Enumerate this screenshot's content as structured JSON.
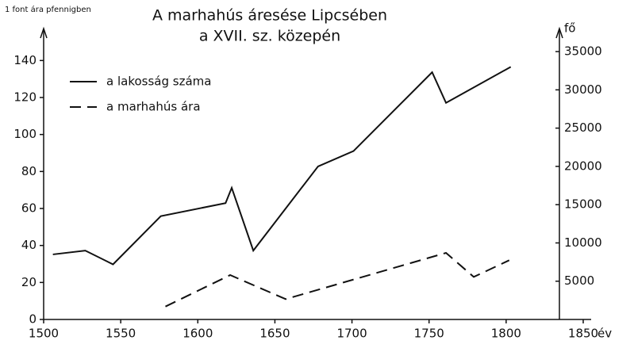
{
  "chart_data": {
    "type": "line",
    "title": "A marhahús áresése Lipcsében",
    "subtitle": "a XVII. sz. közepén",
    "y_label": "1 font ára pfennigben",
    "y2_label": "fő",
    "x_label": "év",
    "xlim": [
      1500,
      1850
    ],
    "xticks": [
      1500,
      1550,
      1600,
      1650,
      1700,
      1750,
      1800,
      1850
    ],
    "ylim": [
      0,
      150
    ],
    "yticks": [
      0,
      20,
      40,
      60,
      80,
      100,
      120,
      140
    ],
    "y2lim": [
      0,
      36250
    ],
    "y2ticks": [
      5000,
      10000,
      15000,
      20000,
      25000,
      30000,
      35000
    ],
    "legend": "upper left",
    "series": [
      {
        "name": "a lakosság száma",
        "color": "#111111",
        "dash": "solid",
        "axis": "y2",
        "x": [
          1506,
          1527,
          1545,
          1576,
          1618,
          1622,
          1636,
          1678,
          1701,
          1752,
          1761,
          1803
        ],
        "values": [
          8500,
          9000,
          7200,
          13500,
          15200,
          17200,
          9000,
          20000,
          22000,
          32300,
          28300,
          33000
        ]
      },
      {
        "name": "a marhahús ára",
        "color": "#111111",
        "dash": "dashed",
        "axis": "y",
        "x": [
          1579,
          1621,
          1657,
          1761,
          1779,
          1802
        ],
        "values": [
          7,
          24,
          11,
          36,
          23,
          32
        ]
      }
    ]
  }
}
